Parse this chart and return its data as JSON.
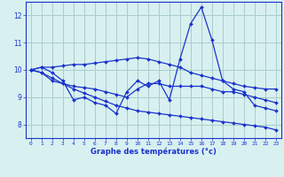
{
  "x": [
    0,
    1,
    2,
    3,
    4,
    5,
    6,
    7,
    8,
    9,
    10,
    11,
    12,
    13,
    14,
    15,
    16,
    17,
    18,
    19,
    20,
    21,
    22,
    23
  ],
  "line1": [
    10.0,
    10.1,
    9.9,
    9.6,
    8.9,
    9.0,
    8.8,
    8.7,
    8.4,
    9.2,
    9.6,
    9.4,
    9.6,
    8.9,
    10.4,
    11.7,
    12.3,
    11.1,
    9.6,
    9.3,
    9.2,
    8.7,
    8.6,
    8.5
  ],
  "line2": [
    10.0,
    10.1,
    10.1,
    10.15,
    10.2,
    10.2,
    10.25,
    10.3,
    10.35,
    10.4,
    10.45,
    10.4,
    10.3,
    10.2,
    10.1,
    9.9,
    9.8,
    9.7,
    9.6,
    9.5,
    9.4,
    9.35,
    9.3,
    9.3
  ],
  "line3": [
    10.0,
    9.9,
    9.6,
    9.5,
    9.4,
    9.35,
    9.3,
    9.2,
    9.1,
    9.0,
    9.3,
    9.5,
    9.5,
    9.4,
    9.4,
    9.4,
    9.4,
    9.3,
    9.2,
    9.2,
    9.1,
    9.0,
    8.9,
    8.8
  ],
  "line4": [
    10.0,
    9.9,
    9.7,
    9.5,
    9.3,
    9.15,
    9.0,
    8.85,
    8.7,
    8.6,
    8.5,
    8.45,
    8.4,
    8.35,
    8.3,
    8.25,
    8.2,
    8.15,
    8.1,
    8.05,
    8.0,
    7.95,
    7.9,
    7.8
  ],
  "bg_color": "#d8f0f0",
  "grid_color": "#aacccc",
  "line_color": "#1a33cc",
  "xlabel": "Graphe des températures (°c)",
  "ylim": [
    7.5,
    12.5
  ],
  "xlim": [
    -0.5,
    23.5
  ],
  "yticks": [
    8,
    9,
    10,
    11,
    12
  ],
  "xticks": [
    0,
    1,
    2,
    3,
    4,
    5,
    6,
    7,
    8,
    9,
    10,
    11,
    12,
    13,
    14,
    15,
    16,
    17,
    18,
    19,
    20,
    21,
    22,
    23
  ],
  "figsize": [
    3.2,
    2.0
  ],
  "dpi": 100
}
